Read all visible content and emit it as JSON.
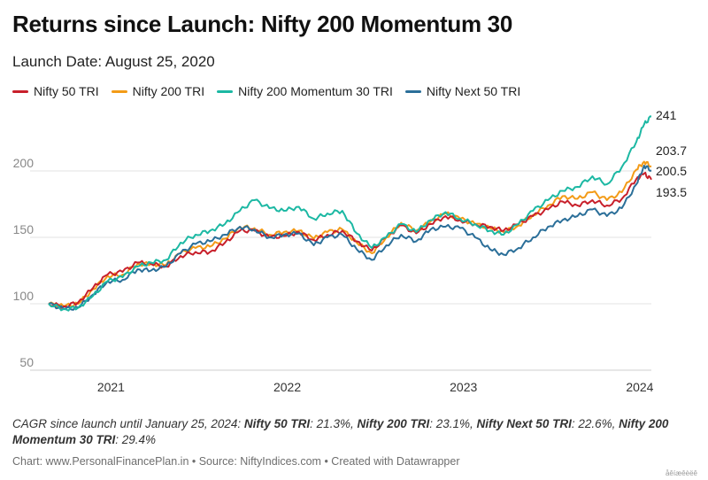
{
  "header": {
    "title": "Returns since Launch: Nifty 200 Momentum 30",
    "subtitle": "Launch Date: August 25, 2020"
  },
  "colors": {
    "nifty50": "#c8202b",
    "nifty200": "#f39b17",
    "momentum30": "#1cb8a3",
    "next50": "#2b6f99",
    "grid": "#e3e3e3",
    "axis_text": "#888888"
  },
  "chart_data": {
    "type": "line",
    "yticks": [
      50,
      100,
      150,
      200
    ],
    "ylim": [
      50,
      250
    ],
    "xticks": [
      "2021",
      "2022",
      "2023",
      "2024"
    ],
    "xlim": [
      "2020-08-25",
      "2024-01-25"
    ],
    "grid": true,
    "legend_position": "top-left",
    "series": [
      {
        "name": "Nifty 50 TRI",
        "color_key": "nifty50",
        "end_label": "193.5",
        "points": [
          [
            "2020-08-25",
            100
          ],
          [
            "2020-09-25",
            98
          ],
          [
            "2020-10-25",
            101
          ],
          [
            "2020-11-25",
            112
          ],
          [
            "2020-12-25",
            122
          ],
          [
            "2021-01-25",
            124
          ],
          [
            "2021-02-25",
            131
          ],
          [
            "2021-03-25",
            130
          ],
          [
            "2021-04-25",
            128
          ],
          [
            "2021-05-25",
            136
          ],
          [
            "2021-06-25",
            139
          ],
          [
            "2021-07-25",
            139
          ],
          [
            "2021-08-25",
            146
          ],
          [
            "2021-09-25",
            155
          ],
          [
            "2021-10-25",
            155
          ],
          [
            "2021-11-25",
            150
          ],
          [
            "2021-12-25",
            151
          ],
          [
            "2022-01-25",
            154
          ],
          [
            "2022-02-25",
            148
          ],
          [
            "2022-03-25",
            152
          ],
          [
            "2022-04-25",
            155
          ],
          [
            "2022-05-25",
            147
          ],
          [
            "2022-06-25",
            140
          ],
          [
            "2022-07-25",
            150
          ],
          [
            "2022-08-25",
            159
          ],
          [
            "2022-09-25",
            153
          ],
          [
            "2022-10-25",
            160
          ],
          [
            "2022-11-25",
            166
          ],
          [
            "2022-12-25",
            163
          ],
          [
            "2023-01-25",
            160
          ],
          [
            "2023-02-25",
            158
          ],
          [
            "2023-03-25",
            155
          ],
          [
            "2023-04-25",
            160
          ],
          [
            "2023-05-25",
            166
          ],
          [
            "2023-06-25",
            171
          ],
          [
            "2023-07-25",
            177
          ],
          [
            "2023-08-25",
            174
          ],
          [
            "2023-09-25",
            178
          ],
          [
            "2023-10-25",
            174
          ],
          [
            "2023-11-25",
            179
          ],
          [
            "2023-12-25",
            194
          ],
          [
            "2024-01-10",
            198
          ],
          [
            "2024-01-25",
            193.5
          ]
        ]
      },
      {
        "name": "Nifty 200 TRI",
        "color_key": "nifty200",
        "end_label": "203.7",
        "points": [
          [
            "2020-08-25",
            100
          ],
          [
            "2020-09-25",
            98
          ],
          [
            "2020-10-25",
            100
          ],
          [
            "2020-11-25",
            111
          ],
          [
            "2020-12-25",
            121
          ],
          [
            "2021-01-25",
            122
          ],
          [
            "2021-02-25",
            130
          ],
          [
            "2021-03-25",
            130
          ],
          [
            "2021-04-25",
            129
          ],
          [
            "2021-05-25",
            138
          ],
          [
            "2021-06-25",
            142
          ],
          [
            "2021-07-25",
            143
          ],
          [
            "2021-08-25",
            149
          ],
          [
            "2021-09-25",
            158
          ],
          [
            "2021-10-25",
            157
          ],
          [
            "2021-11-25",
            152
          ],
          [
            "2021-12-25",
            154
          ],
          [
            "2022-01-25",
            155
          ],
          [
            "2022-02-25",
            149
          ],
          [
            "2022-03-25",
            154
          ],
          [
            "2022-04-25",
            156
          ],
          [
            "2022-05-25",
            146
          ],
          [
            "2022-06-25",
            138
          ],
          [
            "2022-07-25",
            150
          ],
          [
            "2022-08-25",
            161
          ],
          [
            "2022-09-25",
            155
          ],
          [
            "2022-10-25",
            162
          ],
          [
            "2022-11-25",
            168
          ],
          [
            "2022-12-25",
            164
          ],
          [
            "2023-01-25",
            160
          ],
          [
            "2023-02-25",
            157
          ],
          [
            "2023-03-25",
            154
          ],
          [
            "2023-04-25",
            159
          ],
          [
            "2023-05-25",
            167
          ],
          [
            "2023-06-25",
            174
          ],
          [
            "2023-07-25",
            181
          ],
          [
            "2023-08-25",
            179
          ],
          [
            "2023-09-25",
            184
          ],
          [
            "2023-10-25",
            178
          ],
          [
            "2023-11-25",
            184
          ],
          [
            "2023-12-25",
            201
          ],
          [
            "2024-01-10",
            207
          ],
          [
            "2024-01-25",
            203.7
          ]
        ]
      },
      {
        "name": "Nifty 200 Momentum 30 TRI",
        "color_key": "momentum30",
        "end_label": "241",
        "points": [
          [
            "2020-08-25",
            100
          ],
          [
            "2020-09-25",
            96
          ],
          [
            "2020-10-25",
            97
          ],
          [
            "2020-11-25",
            106
          ],
          [
            "2020-12-25",
            117
          ],
          [
            "2021-01-25",
            120
          ],
          [
            "2021-02-25",
            128
          ],
          [
            "2021-03-25",
            131
          ],
          [
            "2021-04-25",
            133
          ],
          [
            "2021-05-25",
            146
          ],
          [
            "2021-06-25",
            152
          ],
          [
            "2021-07-25",
            155
          ],
          [
            "2021-08-25",
            160
          ],
          [
            "2021-09-25",
            170
          ],
          [
            "2021-10-25",
            178
          ],
          [
            "2021-11-25",
            172
          ],
          [
            "2021-12-25",
            170
          ],
          [
            "2022-01-25",
            173
          ],
          [
            "2022-02-25",
            164
          ],
          [
            "2022-03-25",
            168
          ],
          [
            "2022-04-25",
            170
          ],
          [
            "2022-05-25",
            153
          ],
          [
            "2022-06-25",
            142
          ],
          [
            "2022-07-25",
            150
          ],
          [
            "2022-08-25",
            160
          ],
          [
            "2022-09-25",
            154
          ],
          [
            "2022-10-25",
            163
          ],
          [
            "2022-11-25",
            169
          ],
          [
            "2022-12-25",
            164
          ],
          [
            "2023-01-25",
            160
          ],
          [
            "2023-02-25",
            155
          ],
          [
            "2023-03-25",
            152
          ],
          [
            "2023-04-25",
            160
          ],
          [
            "2023-05-25",
            170
          ],
          [
            "2023-06-25",
            178
          ],
          [
            "2023-07-25",
            185
          ],
          [
            "2023-08-25",
            188
          ],
          [
            "2023-09-25",
            196
          ],
          [
            "2023-10-25",
            190
          ],
          [
            "2023-11-25",
            203
          ],
          [
            "2023-12-25",
            222
          ],
          [
            "2024-01-10",
            235
          ],
          [
            "2024-01-25",
            241
          ]
        ]
      },
      {
        "name": "Nifty Next 50 TRI",
        "color_key": "next50",
        "end_label": "200.5",
        "points": [
          [
            "2020-08-25",
            100
          ],
          [
            "2020-09-25",
            96
          ],
          [
            "2020-10-25",
            97
          ],
          [
            "2020-11-25",
            107
          ],
          [
            "2020-12-25",
            117
          ],
          [
            "2021-01-25",
            118
          ],
          [
            "2021-02-25",
            126
          ],
          [
            "2021-03-25",
            125
          ],
          [
            "2021-04-25",
            128
          ],
          [
            "2021-05-25",
            138
          ],
          [
            "2021-06-25",
            145
          ],
          [
            "2021-07-25",
            147
          ],
          [
            "2021-08-25",
            152
          ],
          [
            "2021-09-25",
            158
          ],
          [
            "2021-10-25",
            156
          ],
          [
            "2021-11-25",
            150
          ],
          [
            "2021-12-25",
            152
          ],
          [
            "2022-01-25",
            153
          ],
          [
            "2022-02-25",
            144
          ],
          [
            "2022-03-25",
            150
          ],
          [
            "2022-04-25",
            152
          ],
          [
            "2022-05-25",
            141
          ],
          [
            "2022-06-25",
            133
          ],
          [
            "2022-07-25",
            144
          ],
          [
            "2022-08-25",
            152
          ],
          [
            "2022-09-25",
            147
          ],
          [
            "2022-10-25",
            156
          ],
          [
            "2022-11-25",
            158
          ],
          [
            "2022-12-25",
            157
          ],
          [
            "2023-01-25",
            150
          ],
          [
            "2023-02-25",
            141
          ],
          [
            "2023-03-25",
            137
          ],
          [
            "2023-04-25",
            142
          ],
          [
            "2023-05-25",
            150
          ],
          [
            "2023-06-25",
            158
          ],
          [
            "2023-07-25",
            163
          ],
          [
            "2023-08-25",
            166
          ],
          [
            "2023-09-25",
            171
          ],
          [
            "2023-10-25",
            166
          ],
          [
            "2023-11-25",
            172
          ],
          [
            "2023-12-25",
            190
          ],
          [
            "2024-01-10",
            204
          ],
          [
            "2024-01-25",
            200.5
          ]
        ]
      }
    ]
  },
  "note": {
    "lead": "CAGR since launch until January 25, 2024: ",
    "items": [
      {
        "name": "Nifty 50 TRI",
        "value": ": 21.3%, "
      },
      {
        "name": "Nifty 200 TRI",
        "value": ": 23.1%, "
      },
      {
        "name": "Nifty Next 50 TRI",
        "value": ": 22.6%, "
      },
      {
        "name": "Nifty 200 Momentum 30 TRI",
        "value": ": 29.4%"
      }
    ]
  },
  "footer": {
    "text": "Chart: www.PersonalFinancePlan.in • Source: NiftyIndices.com • Created with Datawrapper",
    "mark": "åêíæêèëê"
  }
}
